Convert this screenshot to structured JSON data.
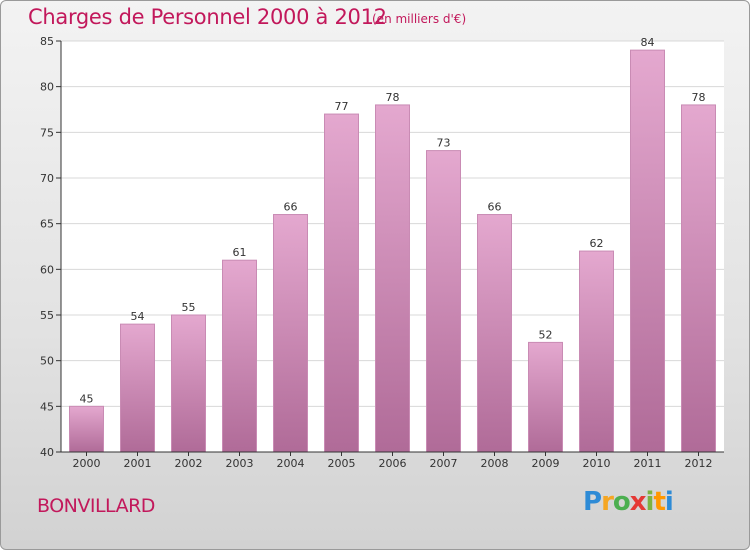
{
  "header": {
    "title": "Charges de Personnel 2000 à 2012",
    "unit": "(en milliers d'€)"
  },
  "footer": {
    "commune": "BONVILLARD",
    "logo": [
      "P",
      "r",
      "o",
      "x",
      "i",
      "t",
      "i"
    ]
  },
  "colors": {
    "title": "#c2185b",
    "bar_top": "#e4a8cf",
    "bar_bottom": "#b06b98",
    "axis": "#333333",
    "grid": "#d8d8d8",
    "logo": [
      "#2e8bd6",
      "#f5a623",
      "#4caf50",
      "#e53935",
      "#7cb342",
      "#ff9800",
      "#2e8bd6"
    ]
  },
  "chart_data": {
    "type": "bar",
    "title": "Charges de Personnel 2000 à 2012",
    "subtitle": "(en milliers d'€)",
    "categories": [
      "2000",
      "2001",
      "2002",
      "2003",
      "2004",
      "2005",
      "2006",
      "2007",
      "2008",
      "2009",
      "2010",
      "2011",
      "2012"
    ],
    "values": [
      45,
      54,
      55,
      61,
      66,
      77,
      78,
      73,
      66,
      52,
      62,
      84,
      78
    ],
    "ylim": [
      40,
      85
    ],
    "yticks": [
      40,
      45,
      50,
      55,
      60,
      65,
      70,
      75,
      80,
      85
    ],
    "grid": true,
    "legend": "none"
  }
}
